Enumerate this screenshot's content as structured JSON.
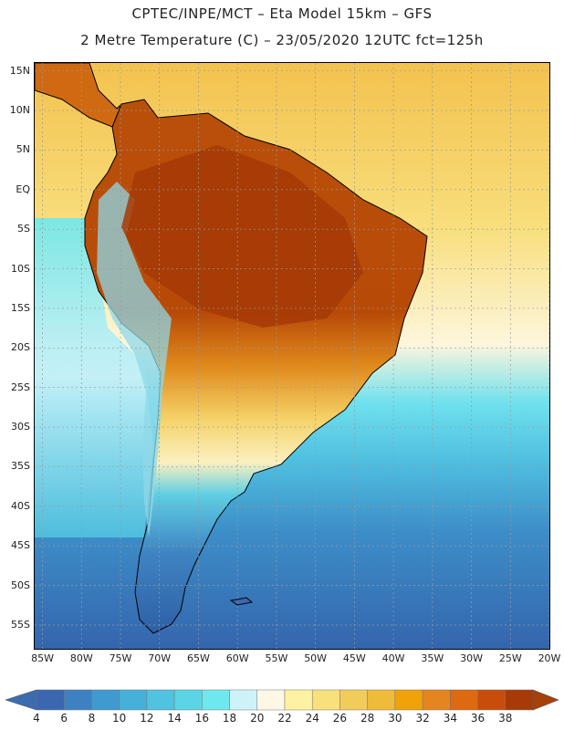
{
  "header": {
    "line1": "CPTEC/INPE/MCT –  Eta Model 15km – GFS",
    "line2": "2 Metre Temperature (C) – 23/05/2020 12UTC fct=125h"
  },
  "map": {
    "latitude_labels": [
      "15N",
      "10N",
      "5N",
      "EQ",
      "5S",
      "10S",
      "15S",
      "20S",
      "25S",
      "30S",
      "35S",
      "40S",
      "45S",
      "50S",
      "55S"
    ],
    "longitude_labels": [
      "85W",
      "80W",
      "75W",
      "70W",
      "65W",
      "60W",
      "55W",
      "50W",
      "45W",
      "40W",
      "35W",
      "30W",
      "25W",
      "20W"
    ],
    "lat_range": [
      -58,
      16
    ],
    "lon_range": [
      -86,
      -20
    ],
    "ocean_color": "#f7d77a",
    "land_color": "#c25a0a"
  },
  "colorbar": {
    "labels": [
      "4",
      "6",
      "8",
      "10",
      "12",
      "14",
      "16",
      "18",
      "20",
      "22",
      "24",
      "26",
      "28",
      "30",
      "32",
      "34",
      "36",
      "38"
    ],
    "colors": [
      "#3a67b0",
      "#3d81c2",
      "#3f9bcf",
      "#45b0d9",
      "#4fc3df",
      "#5bd5e6",
      "#6ee8ee",
      "#cdf3f8",
      "#fdf8e6",
      "#fdf1a2",
      "#f8e07a",
      "#f2cc5a",
      "#eebb3a",
      "#f0a20a",
      "#e58520",
      "#dd6a10",
      "#c94d0a",
      "#a83a08"
    ],
    "lower_arrow_color": "#3c6cb0",
    "upper_arrow_color": "#a8400a"
  }
}
